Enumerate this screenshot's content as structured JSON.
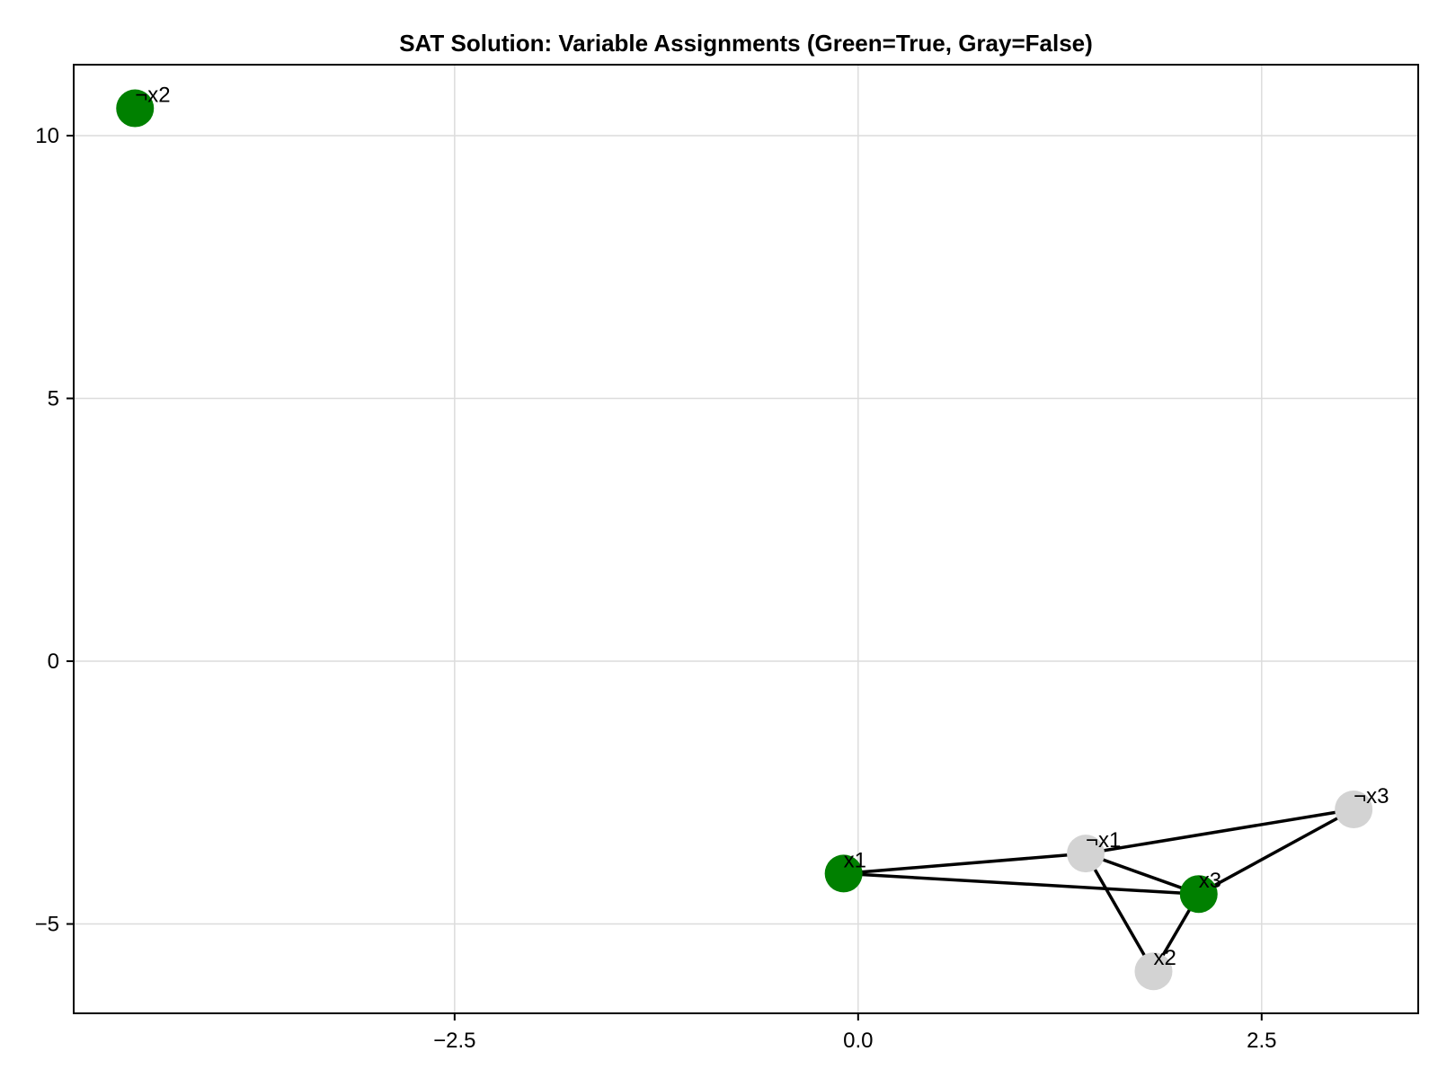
{
  "chart_data": {
    "type": "scatter",
    "title": "SAT Solution: Variable Assignments (Green=True, Gray=False)",
    "xlabel": "",
    "ylabel": "",
    "xlim": [
      -4.86,
      3.47
    ],
    "ylim": [
      -6.7,
      11.35
    ],
    "grid": true,
    "x_ticks": [
      {
        "value": -2.5,
        "label": "−2.5"
      },
      {
        "value": 0.0,
        "label": "0.0"
      },
      {
        "value": 2.5,
        "label": "2.5"
      }
    ],
    "y_ticks": [
      {
        "value": 10,
        "label": "10"
      },
      {
        "value": 5,
        "label": "5"
      },
      {
        "value": 0,
        "label": "0"
      },
      {
        "value": -5,
        "label": "−5"
      }
    ],
    "colors": {
      "true": "#008000",
      "false": "#d3d3d3",
      "edge": "#000000"
    },
    "nodes": [
      {
        "id": "x1",
        "label": "x1",
        "x": -0.09,
        "y": -4.04,
        "value": true
      },
      {
        "id": "nx1",
        "label": "¬x1",
        "x": 1.41,
        "y": -3.66,
        "value": false
      },
      {
        "id": "x2",
        "label": "x2",
        "x": 1.83,
        "y": -5.9,
        "value": false
      },
      {
        "id": "nx2",
        "label": "¬x2",
        "x": -4.48,
        "y": 10.52,
        "value": true
      },
      {
        "id": "x3",
        "label": "x3",
        "x": 2.11,
        "y": -4.43,
        "value": true
      },
      {
        "id": "nx3",
        "label": "¬x3",
        "x": 3.07,
        "y": -2.82,
        "value": false
      }
    ],
    "edges": [
      [
        "x1",
        "nx1"
      ],
      [
        "x1",
        "x3"
      ],
      [
        "nx1",
        "x3"
      ],
      [
        "nx1",
        "x2"
      ],
      [
        "x2",
        "x3"
      ],
      [
        "x3",
        "nx3"
      ],
      [
        "nx1",
        "nx3"
      ]
    ]
  }
}
